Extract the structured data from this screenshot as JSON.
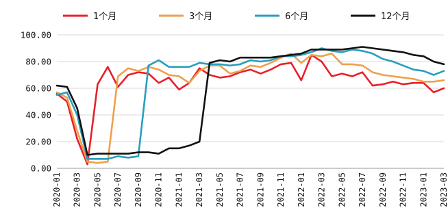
{
  "chart_data": {
    "type": "line",
    "title": "",
    "xlabel": "",
    "ylabel": "",
    "ylim": [
      0,
      100
    ],
    "yticks": [
      "0.00",
      "20.00",
      "40.00",
      "60.00",
      "80.00",
      "100.00"
    ],
    "grid": {
      "horizontal": true,
      "vertical": false
    },
    "legend_position": "top",
    "x": [
      "2020-01",
      "2020-02",
      "2020-03",
      "2020-04",
      "2020-05",
      "2020-06",
      "2020-07",
      "2020-08",
      "2020-09",
      "2020-10",
      "2020-11",
      "2020-12",
      "2021-01",
      "2021-02",
      "2021-03",
      "2021-04",
      "2021-05",
      "2021-06",
      "2021-07",
      "2021-08",
      "2021-09",
      "2021-10",
      "2021-11",
      "2021-12",
      "2022-01",
      "2022-02",
      "2022-03",
      "2022-04",
      "2022-05",
      "2022-06",
      "2022-07",
      "2022-08",
      "2022-09",
      "2022-10",
      "2022-11",
      "2022-12",
      "2023-01",
      "2023-02",
      "2023-03"
    ],
    "xtick_labels": [
      "2020-01",
      "2020-03",
      "2020-05",
      "2020-07",
      "2020-09",
      "2020-11",
      "2021-01",
      "2021-03",
      "2021-05",
      "2021-07",
      "2021-09",
      "2021-11",
      "2022-01",
      "2022-03",
      "2022-05",
      "2022-07",
      "2022-09",
      "2022-11",
      "2023-01",
      "2023-03"
    ],
    "series": [
      {
        "name": "1个月",
        "color": "#e8202a",
        "values": [
          56,
          50,
          22,
          3,
          63,
          76,
          61,
          70,
          72,
          71,
          64,
          68,
          59,
          64,
          75,
          70,
          68,
          69,
          72,
          74,
          71,
          74,
          78,
          79,
          66,
          85,
          80,
          69,
          71,
          69,
          72,
          62,
          63,
          65,
          63,
          64,
          64,
          57,
          60
        ]
      },
      {
        "name": "3个月",
        "color": "#eea04b",
        "values": [
          57,
          53,
          28,
          5,
          4,
          5,
          69,
          75,
          73,
          76,
          74,
          70,
          69,
          64,
          73,
          77,
          77,
          71,
          73,
          77,
          76,
          79,
          83,
          86,
          79,
          85,
          84,
          86,
          78,
          78,
          77,
          72,
          70,
          69,
          68,
          67,
          65,
          65,
          66
        ]
      },
      {
        "name": "6个月",
        "color": "#279fbd",
        "values": [
          55,
          57,
          40,
          7,
          7,
          7,
          9,
          8,
          9,
          77,
          81,
          76,
          76,
          76,
          79,
          78,
          78,
          77,
          78,
          81,
          80,
          81,
          84,
          84,
          85,
          87,
          90,
          88,
          87,
          89,
          88,
          86,
          82,
          80,
          77,
          74,
          73,
          70,
          73
        ]
      },
      {
        "name": "12个月",
        "color": "#111111",
        "values": [
          62,
          61,
          45,
          10,
          11,
          11,
          11,
          11,
          12,
          12,
          11,
          15,
          15,
          17,
          20,
          79,
          81,
          80,
          83,
          83,
          83,
          83,
          84,
          85,
          86,
          89,
          89,
          89,
          89,
          90,
          91,
          90,
          89,
          88,
          87,
          85,
          84,
          80,
          78
        ]
      }
    ]
  }
}
